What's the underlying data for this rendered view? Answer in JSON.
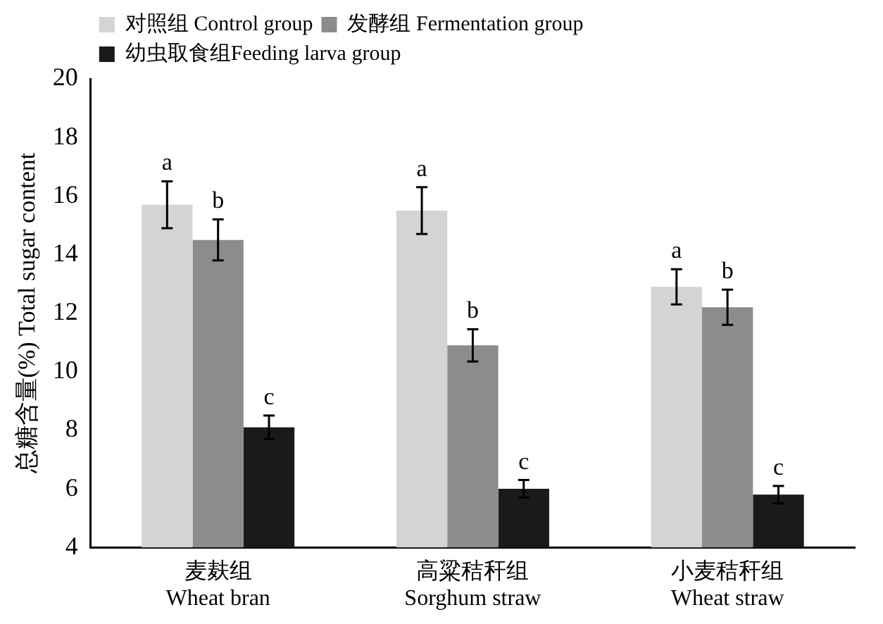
{
  "chart_data": {
    "type": "bar",
    "ylabel": "总糖含量(%) Total sugar content",
    "categories": [
      "麦麸组\nWheat bran",
      "高粱秸秆组\nSorghum straw",
      "小麦秸秆组\nWheat straw"
    ],
    "series": [
      {
        "name": "对照组 Control group",
        "color": "#d4d4d4",
        "values": [
          15.7,
          15.5,
          12.9
        ],
        "errors": [
          0.8,
          0.8,
          0.6
        ],
        "value_labels": [
          "a",
          "a",
          "a"
        ]
      },
      {
        "name": "发酵组 Fermentation group",
        "color": "#8c8c8c",
        "values": [
          14.5,
          10.9,
          12.2
        ],
        "errors": [
          0.7,
          0.55,
          0.6
        ],
        "value_labels": [
          "b",
          "b",
          "b"
        ]
      },
      {
        "name": "幼虫取食组Feeding larva group",
        "color": "#1a1a1a",
        "values": [
          8.1,
          6.0,
          5.8
        ],
        "errors": [
          0.4,
          0.3,
          0.3
        ],
        "value_labels": [
          "c",
          "c",
          "c"
        ]
      }
    ],
    "ylim": [
      4,
      20
    ],
    "yticks": [
      4,
      6,
      8,
      10,
      12,
      14,
      16,
      18,
      20
    ],
    "grid": false,
    "legend": "top left"
  }
}
